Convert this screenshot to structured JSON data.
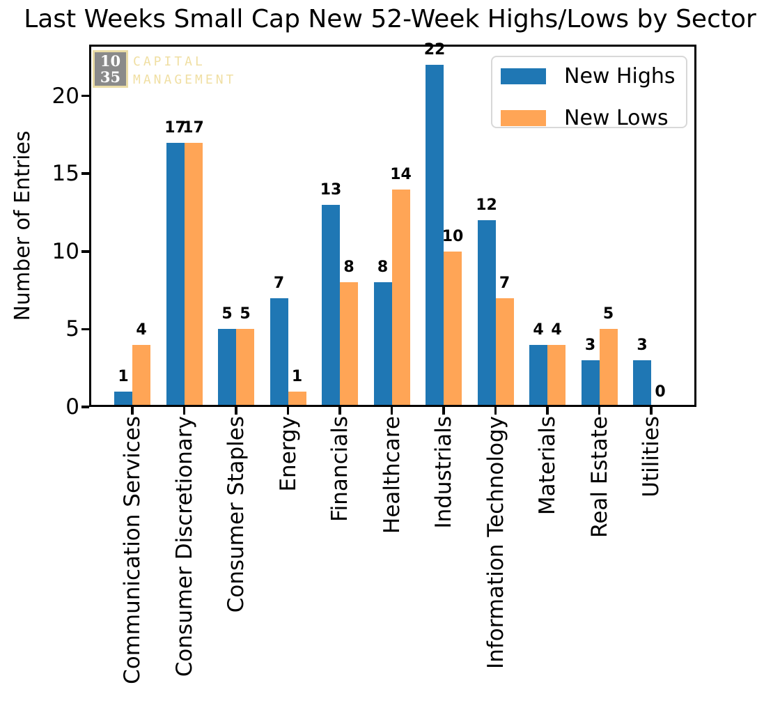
{
  "logo": {
    "number_top": "10",
    "number_bottom": "35",
    "name_line1": "CAPITAL",
    "name_line2": "MANAGEMENT",
    "colors": {
      "box_bg": "#8A8A8A",
      "accent": "#F0DFA3"
    }
  },
  "chart_data": {
    "type": "bar",
    "title": "Last Weeks Small Cap New 52-Week Highs/Lows by Sector",
    "ylabel": "Number of Entries",
    "xlabel": "",
    "categories": [
      "Communication Services",
      "Consumer Discretionary",
      "Consumer Staples",
      "Energy",
      "Financials",
      "Healthcare",
      "Industrials",
      "Information Technology",
      "Materials",
      "Real Estate",
      "Utilities"
    ],
    "series": [
      {
        "name": "New Highs",
        "color": "#1F77B4",
        "values": [
          1,
          17,
          5,
          7,
          13,
          8,
          22,
          12,
          4,
          3,
          3
        ]
      },
      {
        "name": "New Lows",
        "color": "#FFA556",
        "values": [
          4,
          17,
          5,
          1,
          8,
          14,
          10,
          7,
          4,
          5,
          0
        ]
      }
    ],
    "bar_value_labels": true,
    "yticks": [
      0,
      5,
      10,
      15,
      20
    ],
    "ylim": [
      0,
      23.3
    ],
    "grid": false,
    "legend_position": "upper right"
  }
}
